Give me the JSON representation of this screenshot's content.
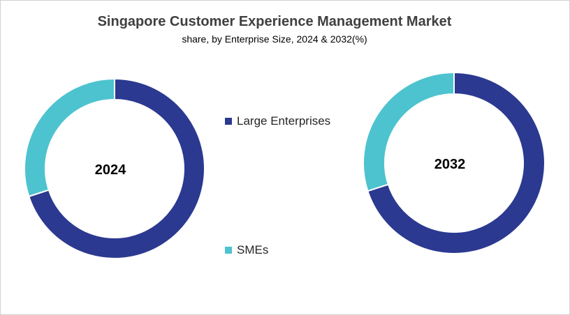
{
  "chart_data": {
    "type": "pie",
    "title": "Singapore Customer Experience Management Market",
    "subtitle": "share, by Enterprise Size, 2024 & 2032(%)",
    "categories": [
      "Large Enterprises",
      "SMEs"
    ],
    "colors": [
      "#2b3990",
      "#4dc3cf"
    ],
    "legend_position": "center",
    "donuts": [
      {
        "label": "2024",
        "values": [
          70,
          30
        ]
      },
      {
        "label": "2032",
        "values": [
          70,
          30
        ]
      }
    ]
  }
}
